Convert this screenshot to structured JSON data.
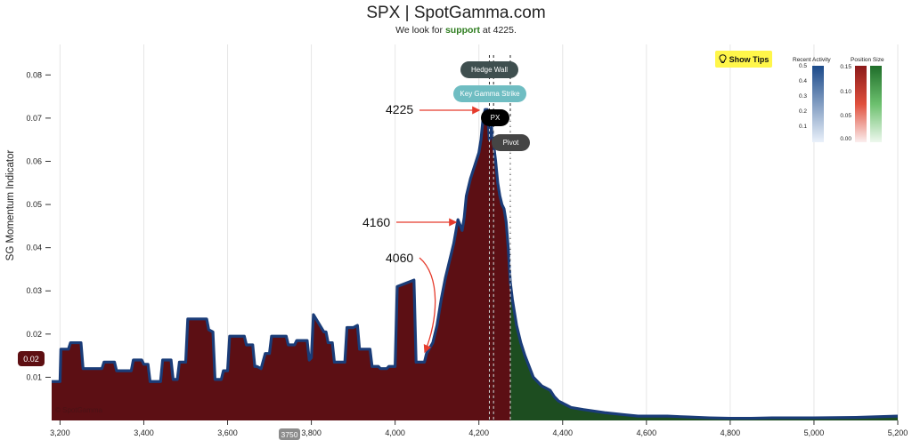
{
  "header": {
    "title": "SPX | SpotGamma.com",
    "subtitle_prefix": "We look for ",
    "subtitle_highlight": "support",
    "subtitle_suffix": " at 4225."
  },
  "controls": {
    "show_tips_label": "Show Tips",
    "value_badge": "0.02",
    "slider_badge": "3750"
  },
  "watermark": "© SpotGamma",
  "markers": {
    "hedge_wall": "Hedge Wall",
    "key_gamma_strike": "Key Gamma Strike",
    "px": "PX",
    "pivot": "Pivot"
  },
  "annotations": {
    "a1": "4225",
    "a2": "4160",
    "a3": "4060"
  },
  "legend": {
    "recent_activity_title": "Recent Activity",
    "position_size_title": "Position Size",
    "recent_ticks": [
      "0.5",
      "0.4",
      "0.3",
      "0.2",
      "0.1"
    ],
    "position_ticks": [
      "0.15",
      "0.10",
      "0.05",
      "0.00"
    ],
    "colors": {
      "recent": "#1b4a8a",
      "red": "#8b1a1a",
      "green": "#1f6e2a"
    }
  },
  "chart_data": {
    "type": "area",
    "ylabel": "SG Momentum Indicator",
    "xlabel": "",
    "xlim": [
      3180,
      5200
    ],
    "ylim": [
      0,
      0.085
    ],
    "xticks": [
      "3,200",
      "3,400",
      "3,600",
      "3,800",
      "4,000",
      "4,200",
      "4,400",
      "4,600",
      "4,800",
      "5,000",
      "5,200"
    ],
    "yticks": [
      "0.01",
      "0.02",
      "0.03",
      "0.04",
      "0.05",
      "0.06",
      "0.07",
      "0.08"
    ],
    "colors": {
      "put_fill": "#5c0f14",
      "call_fill": "#1d4d20",
      "line": "#1a3c78"
    },
    "vertical_lines": {
      "key_gamma_strike": 4225,
      "px": 4235,
      "pivot": 4275
    },
    "split_x": 4275,
    "x": [
      3180,
      3200,
      3202,
      3220,
      3225,
      3230,
      3250,
      3255,
      3300,
      3305,
      3325,
      3330,
      3335,
      3370,
      3375,
      3395,
      3400,
      3410,
      3415,
      3440,
      3445,
      3465,
      3470,
      3480,
      3485,
      3500,
      3505,
      3550,
      3555,
      3565,
      3570,
      3585,
      3590,
      3600,
      3605,
      3640,
      3645,
      3660,
      3665,
      3670,
      3680,
      3690,
      3700,
      3705,
      3740,
      3745,
      3760,
      3765,
      3790,
      3795,
      3800,
      3805,
      3830,
      3835,
      3840,
      3850,
      3855,
      3880,
      3885,
      3890,
      3900,
      3910,
      3915,
      3940,
      3945,
      3960,
      3965,
      3980,
      3985,
      4000,
      4005,
      4045,
      4050,
      4070,
      4075,
      4090,
      4100,
      4110,
      4120,
      4130,
      4140,
      4150,
      4160,
      4165,
      4170,
      4180,
      4190,
      4200,
      4205,
      4210,
      4215,
      4220,
      4225,
      4230,
      4235,
      4240,
      4245,
      4250,
      4255,
      4260,
      4265,
      4270,
      4275,
      4280,
      4290,
      4300,
      4310,
      4320,
      4330,
      4340,
      4350,
      4360,
      4370,
      4380,
      4390,
      4400,
      4420,
      4450,
      4500,
      4550,
      4580,
      4600,
      4650,
      4700,
      4750,
      4800,
      4850,
      4900,
      4950,
      5000,
      5100,
      5200
    ],
    "y": [
      0.009,
      0.009,
      0.0165,
      0.0165,
      0.018,
      0.018,
      0.018,
      0.012,
      0.012,
      0.0135,
      0.0135,
      0.0135,
      0.0115,
      0.0115,
      0.014,
      0.014,
      0.013,
      0.013,
      0.009,
      0.009,
      0.014,
      0.014,
      0.0095,
      0.0095,
      0.0135,
      0.0135,
      0.0235,
      0.0235,
      0.021,
      0.0205,
      0.0095,
      0.0095,
      0.0115,
      0.0115,
      0.0195,
      0.0195,
      0.0175,
      0.0175,
      0.0125,
      0.0125,
      0.012,
      0.0155,
      0.0155,
      0.0195,
      0.0195,
      0.0175,
      0.0175,
      0.0185,
      0.0185,
      0.014,
      0.0145,
      0.0245,
      0.0205,
      0.0205,
      0.018,
      0.018,
      0.0135,
      0.0135,
      0.0215,
      0.0215,
      0.0215,
      0.022,
      0.0165,
      0.0165,
      0.0125,
      0.0125,
      0.012,
      0.012,
      0.0125,
      0.0125,
      0.031,
      0.0325,
      0.0135,
      0.0135,
      0.0155,
      0.018,
      0.022,
      0.028,
      0.033,
      0.037,
      0.041,
      0.0465,
      0.044,
      0.047,
      0.052,
      0.056,
      0.059,
      0.062,
      0.065,
      0.07,
      0.072,
      0.072,
      0.065,
      0.068,
      0.064,
      0.06,
      0.055,
      0.052,
      0.05,
      0.049,
      0.046,
      0.04,
      0.032,
      0.028,
      0.022,
      0.018,
      0.015,
      0.0125,
      0.01,
      0.009,
      0.008,
      0.0075,
      0.007,
      0.0055,
      0.0045,
      0.004,
      0.003,
      0.0025,
      0.0018,
      0.0013,
      0.001,
      0.001,
      0.001,
      0.0008,
      0.0006,
      0.0005,
      0.0005,
      0.0006,
      0.0006,
      0.0006,
      0.0007,
      0.001
    ]
  }
}
